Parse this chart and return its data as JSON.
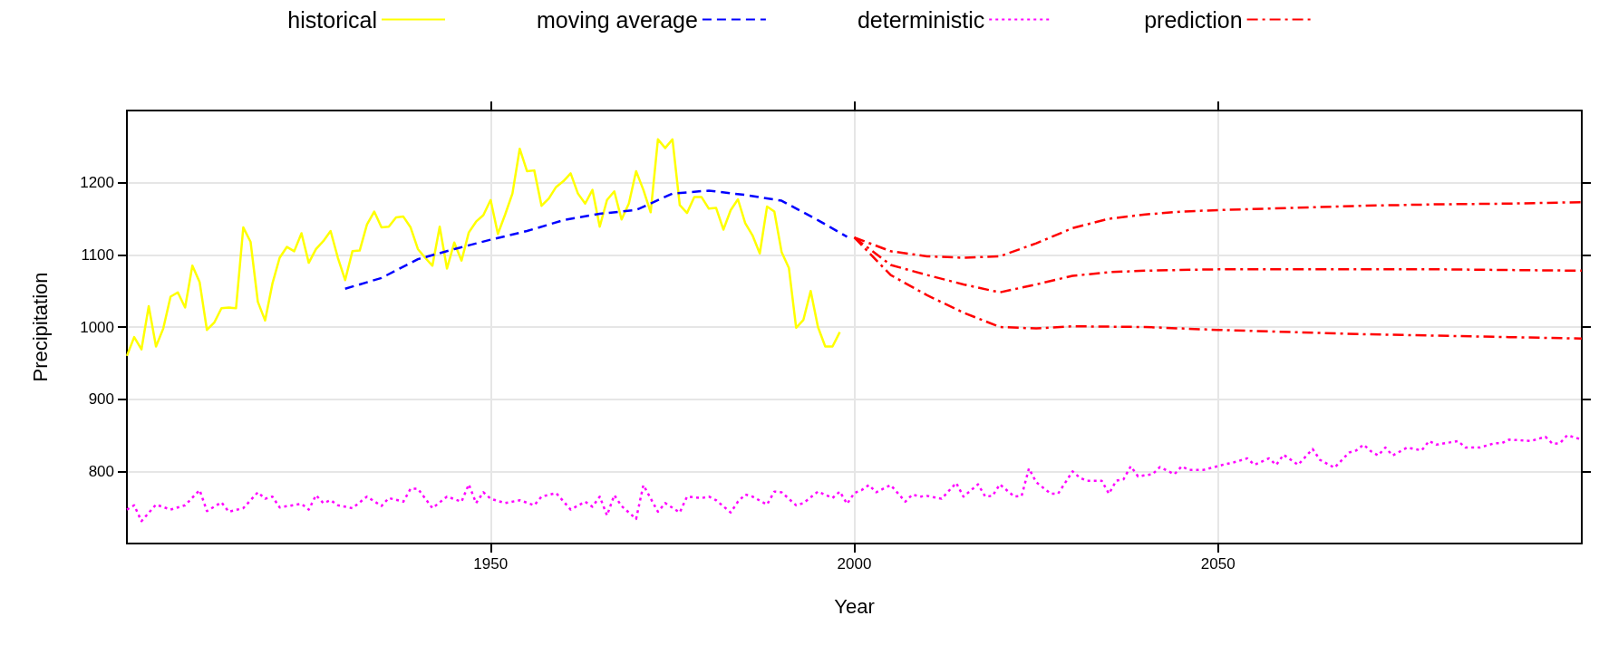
{
  "chart_data": {
    "type": "line",
    "xlabel": "Year",
    "ylabel": "Precipitation",
    "xlim": [
      1900,
      2100
    ],
    "xticks": [
      1950,
      2000,
      2050
    ],
    "ylim": [
      700,
      1300
    ],
    "yticks": [
      800,
      900,
      1000,
      1100,
      1200
    ],
    "grid": true,
    "legend": "top",
    "marker": "none",
    "series": [
      {
        "name": "historical",
        "color": "#ffff00",
        "line_style": "solid",
        "x": [
          1900,
          1901,
          1902,
          1903,
          1904,
          1905,
          1906,
          1907,
          1908,
          1909,
          1910,
          1911,
          1912,
          1913,
          1914,
          1915,
          1916,
          1917,
          1918,
          1919,
          1920,
          1921,
          1922,
          1923,
          1924,
          1925,
          1926,
          1927,
          1928,
          1929,
          1930,
          1931,
          1932,
          1933,
          1934,
          1935,
          1936,
          1937,
          1938,
          1939,
          1940,
          1941,
          1942,
          1943,
          1944,
          1945,
          1946,
          1947,
          1948,
          1949,
          1950,
          1951,
          1952,
          1953,
          1954,
          1955,
          1956,
          1957,
          1958,
          1959,
          1960,
          1961,
          1962,
          1963,
          1964,
          1965,
          1966,
          1967,
          1968,
          1969,
          1970,
          1971,
          1972,
          1973,
          1974,
          1975,
          1976,
          1977,
          1978,
          1979,
          1980,
          1981,
          1982,
          1983,
          1984,
          1985,
          1986,
          1987,
          1988,
          1989,
          1990,
          1991,
          1992,
          1993,
          1994,
          1995,
          1996,
          1997,
          1998
        ],
        "values": [
          960,
          986,
          969,
          1029,
          973,
          998,
          1042,
          1048,
          1027,
          1085,
          1062,
          996,
          1006,
          1026,
          1027,
          1026,
          1138,
          1118,
          1035,
          1009,
          1060,
          1096,
          1111,
          1105,
          1130,
          1089,
          1108,
          1119,
          1133,
          1096,
          1065,
          1105,
          1106,
          1142,
          1160,
          1138,
          1139,
          1152,
          1153,
          1138,
          1108,
          1096,
          1085,
          1139,
          1081,
          1117,
          1092,
          1131,
          1146,
          1155,
          1176,
          1129,
          1156,
          1185,
          1247,
          1216,
          1217,
          1168,
          1178,
          1194,
          1202,
          1213,
          1185,
          1171,
          1190,
          1139,
          1176,
          1188,
          1149,
          1171,
          1216,
          1190,
          1159,
          1260,
          1248,
          1260,
          1169,
          1158,
          1180,
          1180,
          1164,
          1165,
          1135,
          1162,
          1177,
          1144,
          1127,
          1102,
          1167,
          1160,
          1104,
          1082,
          999,
          1010,
          1050,
          1000,
          973,
          973,
          993
        ]
      },
      {
        "name": "moving average",
        "color": "#0000ff",
        "line_style": "dashed",
        "x": [
          1930,
          1935,
          1940,
          1945,
          1950,
          1955,
          1960,
          1965,
          1970,
          1975,
          1980,
          1985,
          1990,
          1995,
          1999
        ],
        "values": [
          1053,
          1068,
          1094,
          1108,
          1121,
          1133,
          1148,
          1157,
          1162,
          1185,
          1189,
          1183,
          1175,
          1148,
          1125
        ]
      },
      {
        "name": "deterministic",
        "color": "#ff00ff",
        "line_style": "dotted",
        "x": [
          1900,
          1901,
          1902,
          1904,
          1906,
          1908,
          1910,
          1911,
          1913,
          1914,
          1916,
          1918,
          1919,
          1920,
          1921,
          1924,
          1925,
          1926,
          1927,
          1928,
          1929,
          1931,
          1933,
          1935,
          1936,
          1938,
          1939,
          1940,
          1942,
          1944,
          1946,
          1947,
          1948,
          1949,
          1950,
          1952,
          1954,
          1956,
          1957,
          1959,
          1961,
          1963,
          1964,
          1965,
          1966,
          1967,
          1968,
          1970,
          1971,
          1973,
          1974,
          1976,
          1977,
          1979,
          1980,
          1981,
          1983,
          1984,
          1985,
          1986,
          1988,
          1989,
          1990,
          1992,
          1993,
          1995,
          1997,
          1998,
          1999,
          2000,
          2001,
          2002,
          2003,
          2005,
          2007,
          2008,
          2009,
          2010,
          2012,
          2014,
          2015,
          2017,
          2018,
          2019,
          2020,
          2022,
          2023,
          2024,
          2025,
          2027,
          2028,
          2030,
          2031,
          2032,
          2034,
          2035,
          2036,
          2037,
          2038,
          2039,
          2041,
          2042,
          2044,
          2045,
          2046,
          2048,
          2051,
          2052,
          2054,
          2055,
          2057,
          2058,
          2059,
          2061,
          2063,
          2064,
          2066,
          2068,
          2069,
          2070,
          2071,
          2072,
          2073,
          2074,
          2076,
          2078,
          2079,
          2080,
          2083,
          2084,
          2086,
          2088,
          2089,
          2090,
          2093,
          2095,
          2096,
          2097,
          2098,
          2100
        ],
        "values": [
          747,
          753,
          731,
          754,
          747,
          753,
          774,
          745,
          757,
          744,
          749,
          771,
          762,
          765,
          750,
          755,
          747,
          767,
          756,
          760,
          753,
          749,
          765,
          752,
          763,
          758,
          776,
          776,
          749,
          765,
          758,
          782,
          756,
          771,
          762,
          756,
          760,
          753,
          765,
          770,
          747,
          758,
          751,
          765,
          739,
          767,
          752,
          734,
          781,
          744,
          756,
          743,
          765,
          763,
          765,
          760,
          743,
          758,
          768,
          765,
          754,
          772,
          771,
          753,
          756,
          772,
          763,
          772,
          755,
          770,
          774,
          781,
          771,
          781,
          758,
          768,
          765,
          766,
          762,
          784,
          765,
          782,
          765,
          766,
          782,
          765,
          766,
          804,
          785,
          769,
          769,
          800,
          791,
          787,
          787,
          769,
          787,
          789,
          807,
          793,
          796,
          806,
          796,
          807,
          802,
          802,
          810,
          812,
          818,
          809,
          818,
          809,
          823,
          809,
          831,
          816,
          805,
          826,
          829,
          837,
          828,
          822,
          833,
          822,
          833,
          829,
          842,
          837,
          842,
          833,
          833,
          839,
          839,
          844,
          842,
          848,
          838,
          839,
          850,
          844
        ]
      },
      {
        "name": "prediction",
        "color": "#ff0000",
        "line_style": "dashdot",
        "x": [
          2000,
          2005,
          2010,
          2015,
          2020,
          2025,
          2030,
          2035,
          2040,
          2045,
          2050,
          2060,
          2070,
          2080,
          2090,
          2100
        ],
        "values": [
          1124,
          1105,
          1098,
          1096,
          1098,
          1116,
          1137,
          1150,
          1156,
          1160,
          1162,
          1165,
          1168,
          1170,
          1171,
          1173
        ]
      },
      {
        "color": "#ff0000",
        "line_style": "dashdot",
        "x": [
          2000,
          2005,
          2010,
          2015,
          2020,
          2025,
          2030,
          2035,
          2040,
          2050,
          2060,
          2070,
          2080,
          2090,
          2100
        ],
        "values": [
          1124,
          1086,
          1072,
          1059,
          1048,
          1059,
          1071,
          1076,
          1078,
          1080,
          1080,
          1080,
          1080,
          1079,
          1078
        ]
      },
      {
        "color": "#ff0000",
        "line_style": "dashdot",
        "x": [
          2000,
          2005,
          2010,
          2015,
          2020,
          2025,
          2030,
          2040,
          2050,
          2060,
          2070,
          2080,
          2090,
          2100
        ],
        "values": [
          1124,
          1072,
          1044,
          1020,
          1000,
          998,
          1001,
          1000,
          996,
          993,
          990,
          988,
          986,
          984
        ]
      }
    ]
  }
}
